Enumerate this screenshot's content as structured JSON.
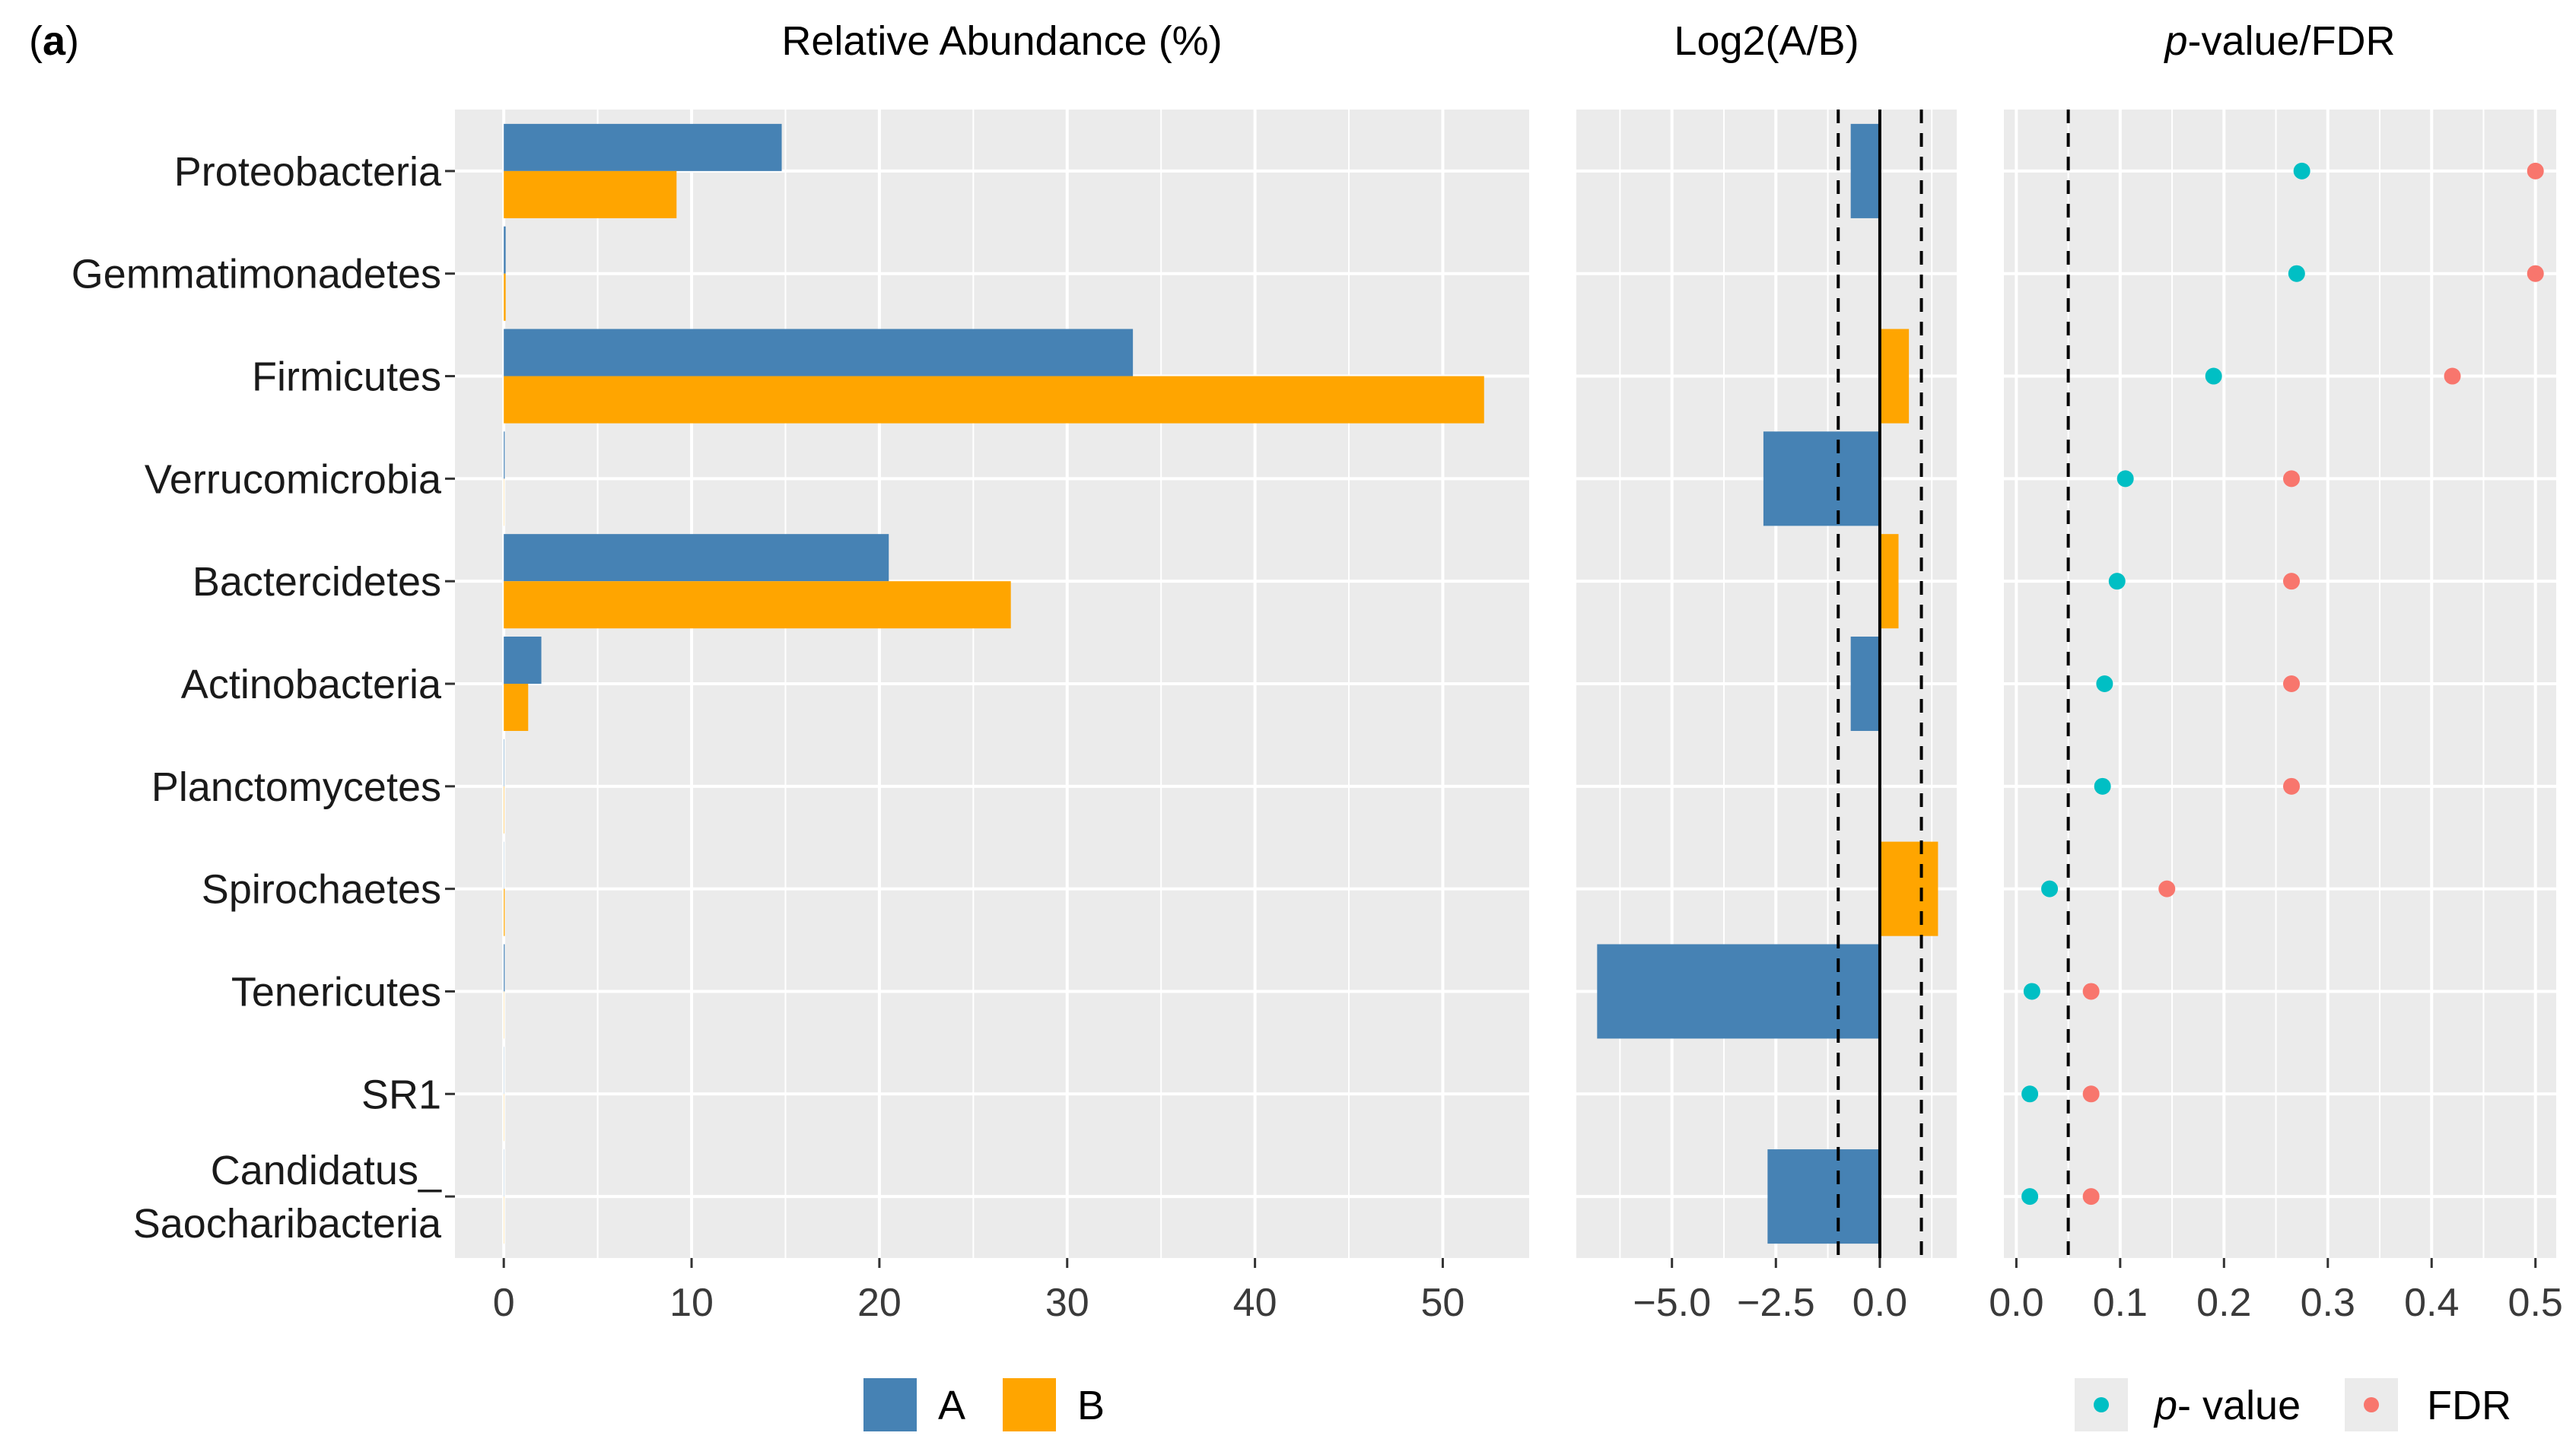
{
  "panel_label": "a",
  "chart_data": [
    {
      "type": "bar",
      "orientation": "horizontal",
      "title": "Relative Abundance (%)",
      "categories": [
        "Proteobacteria",
        "Gemmatimonadetes",
        "Firmicutes",
        "Verrucomicrobia",
        "Bactercidetes",
        "Actinobacteria",
        "Planctomycetes",
        "Spirochaetes",
        "Tenericutes",
        "SR1",
        "Candidatus_\nSaocharibacteria"
      ],
      "category_lines": [
        [
          "Proteobacteria"
        ],
        [
          "Gemmatimonadetes"
        ],
        [
          "Firmicutes"
        ],
        [
          "Verrucomicrobia"
        ],
        [
          "Bactercidetes"
        ],
        [
          "Actinobacteria"
        ],
        [
          "Planctomycetes"
        ],
        [
          "Spirochaetes"
        ],
        [
          "Tenericutes"
        ],
        [
          "SR1"
        ],
        [
          "Candidatus_",
          "Saocharibacteria"
        ]
      ],
      "series": [
        {
          "name": "A",
          "color": "#4682b4",
          "values": [
            14.8,
            0.1,
            33.5,
            0.05,
            20.5,
            2.0,
            0.02,
            0.01,
            0.05,
            0.01,
            0.01
          ]
        },
        {
          "name": "B",
          "color": "#ffa500",
          "values": [
            9.2,
            0.1,
            52.2,
            0.01,
            27.0,
            1.3,
            0.02,
            0.05,
            0.01,
            0.01,
            0.01
          ]
        }
      ],
      "xlim": [
        -2.6,
        54.6
      ],
      "xticks": [
        0,
        10,
        20,
        30,
        40,
        50
      ],
      "xticklabels": [
        "0",
        "10",
        "20",
        "30",
        "40",
        "50"
      ],
      "xlabel": "",
      "ylabel": "",
      "grid": true
    },
    {
      "type": "bar",
      "orientation": "horizontal",
      "title": "Log2(A/B)",
      "values": [
        -0.7,
        0,
        0.7,
        -2.8,
        0.45,
        -0.7,
        0,
        1.4,
        -6.8,
        0,
        -2.7
      ],
      "positive_color": "#ffa500",
      "negative_color": "#4682b4",
      "xlim": [
        -7.3,
        1.85
      ],
      "xticks": [
        -5.0,
        -2.5,
        0.0
      ],
      "xticklabels": [
        "−5.0",
        "−2.5",
        "0.0"
      ],
      "reference_lines": {
        "solid": 0,
        "dashed": [
          -1,
          1
        ]
      },
      "grid": true
    },
    {
      "type": "scatter",
      "title_italic": "p",
      "title_rest": "-value/FDR",
      "series": [
        {
          "name": "p-value",
          "label_italic": "p",
          "label_rest": "- value",
          "color": "#00bfc4",
          "values": [
            0.275,
            0.27,
            0.19,
            0.105,
            0.097,
            0.085,
            0.083,
            0.032,
            0.015,
            0.013,
            0.013
          ]
        },
        {
          "name": "FDR",
          "label_italic": "",
          "label_rest": "FDR",
          "color": "#f8766d",
          "values": [
            0.5,
            0.5,
            0.42,
            0.265,
            0.265,
            0.265,
            0.265,
            0.145,
            0.072,
            0.072,
            0.072
          ]
        }
      ],
      "xlim": [
        -0.012,
        0.52
      ],
      "xticks": [
        0.0,
        0.1,
        0.2,
        0.3,
        0.4,
        0.5
      ],
      "xticklabels": [
        "0.0",
        "0.1",
        "0.2",
        "0.3",
        "0.4",
        "0.5"
      ],
      "reference_lines": {
        "dashed": [
          0.05
        ]
      },
      "grid": true
    }
  ]
}
